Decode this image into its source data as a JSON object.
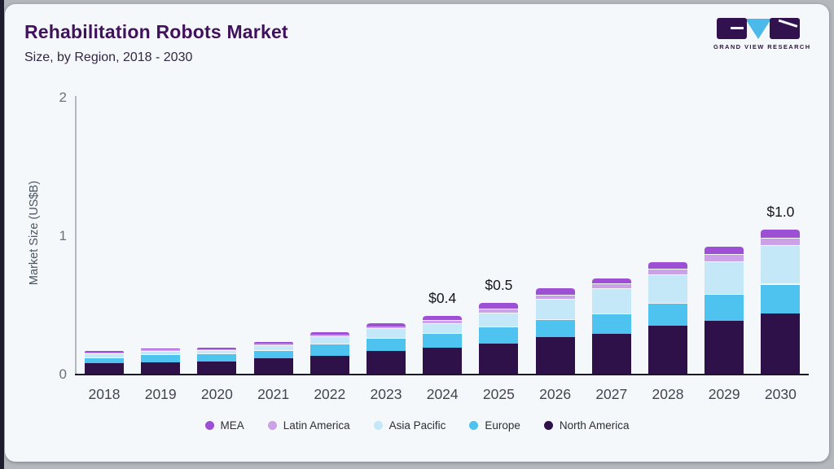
{
  "header": {
    "title": "Rehabilitation Robots Market",
    "subtitle": "Size, by Region, 2018 - 2030"
  },
  "logo": {
    "caption": "GRAND VIEW RESEARCH",
    "mark_dark_color": "#31114e",
    "mark_triangle_color": "#4bb9e9"
  },
  "chart_data": {
    "type": "bar",
    "stacked": true,
    "title": "Rehabilitation Robots Market Size, by Region, 2018 - 2030",
    "xlabel": "",
    "ylabel": "Market Size (US$B)",
    "ylim": [
      0,
      2
    ],
    "yticks": [
      "0",
      "1",
      "2"
    ],
    "ytick_values": [
      0,
      1,
      2
    ],
    "grid": false,
    "categories": [
      "2018",
      "2019",
      "2020",
      "2021",
      "2022",
      "2023",
      "2024",
      "2025",
      "2026",
      "2027",
      "2028",
      "2029",
      "2030"
    ],
    "series": [
      {
        "name": "North America",
        "color": "#2e1148",
        "values": [
          0.075,
          0.085,
          0.088,
          0.11,
          0.13,
          0.163,
          0.19,
          0.22,
          0.263,
          0.29,
          0.345,
          0.385,
          0.435
        ]
      },
      {
        "name": "Europe",
        "color": "#4fc3f0",
        "values": [
          0.045,
          0.055,
          0.06,
          0.06,
          0.085,
          0.098,
          0.105,
          0.12,
          0.133,
          0.147,
          0.167,
          0.19,
          0.215
        ]
      },
      {
        "name": "Asia Pacific",
        "color": "#c5e8f9",
        "values": [
          0.025,
          0.025,
          0.022,
          0.035,
          0.053,
          0.067,
          0.07,
          0.1,
          0.143,
          0.18,
          0.205,
          0.235,
          0.28
        ]
      },
      {
        "name": "Latin America",
        "color": "#cba2e8",
        "values": [
          0.008,
          0.01,
          0.009,
          0.01,
          0.012,
          0.016,
          0.025,
          0.03,
          0.033,
          0.035,
          0.043,
          0.055,
          0.055
        ]
      },
      {
        "name": "MEA",
        "color": "#9d50d4",
        "values": [
          0.009,
          0.01,
          0.01,
          0.014,
          0.02,
          0.024,
          0.035,
          0.045,
          0.05,
          0.045,
          0.05,
          0.06,
          0.06
        ]
      }
    ],
    "value_labels": [
      {
        "category": "2024",
        "text": "$0.4"
      },
      {
        "category": "2025",
        "text": "$0.5"
      },
      {
        "category": "2030",
        "text": "$1.0"
      }
    ],
    "legend_position": "bottom"
  },
  "legend": {
    "items": [
      {
        "label": "MEA",
        "color": "#9d50d4"
      },
      {
        "label": "Latin America",
        "color": "#cba2e8"
      },
      {
        "label": "Asia Pacific",
        "color": "#c5e8f9"
      },
      {
        "label": "Europe",
        "color": "#4fc3f0"
      },
      {
        "label": "North America",
        "color": "#2e1148"
      }
    ]
  },
  "colors": {
    "card_bg": "#f5f8fb",
    "outer_bg": "#b4b8bd",
    "edge_dark": "#1e1d2e",
    "title_text": "#41125c",
    "baseline": "#1c1826"
  }
}
